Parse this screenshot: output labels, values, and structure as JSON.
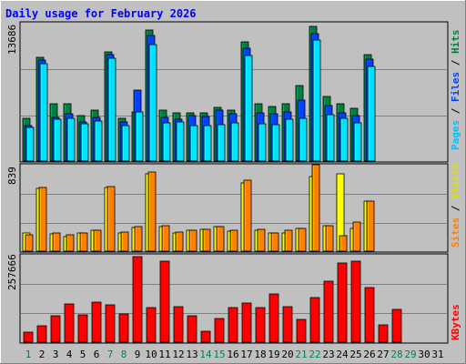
{
  "title": "Daily usage for February 2026",
  "colors": {
    "background": "#c0c0c0",
    "title": "#0000ff",
    "grid": "#808080",
    "hits": "#008040",
    "files": "#0040ff",
    "pages": "#00e0ff",
    "visits": "#ffff00",
    "sites": "#ff8000",
    "kbytes": "#ff0000",
    "day_weekday": "#000000",
    "day_weekend": "#00805c"
  },
  "chart_data": [
    {
      "type": "bar",
      "name": "hits-files-pages",
      "ymax_label": "13686",
      "ylim": [
        0,
        13686
      ],
      "grid": true,
      "legend": [
        {
          "key": "pages",
          "label": "Pages"
        },
        {
          "key": "files",
          "label": "Files"
        },
        {
          "key": "hits",
          "label": "Hits"
        }
      ],
      "series": [
        {
          "name": "Hits",
          "key": "hits",
          "values": [
            4200,
            10300,
            5700,
            5700,
            4500,
            5000,
            10800,
            4200,
            4900,
            13000,
            5000,
            4800,
            4800,
            4800,
            5300,
            5000,
            11800,
            5700,
            5400,
            5700,
            7500,
            13300,
            6400,
            5700,
            5200,
            10500
          ]
        },
        {
          "name": "Files",
          "key": "files",
          "values": [
            3500,
            10000,
            4300,
            4700,
            3900,
            4300,
            10500,
            3900,
            7000,
            12400,
            4300,
            4100,
            4500,
            4400,
            5000,
            4700,
            11200,
            4800,
            4700,
            4900,
            6000,
            12600,
            5500,
            4800,
            4500,
            10100
          ]
        },
        {
          "name": "Pages",
          "key": "pages",
          "values": [
            3300,
            9600,
            4100,
            4200,
            3700,
            4000,
            10200,
            3500,
            4900,
            11500,
            3800,
            3900,
            3500,
            3500,
            3600,
            3800,
            10400,
            3700,
            3600,
            4100,
            4200,
            12000,
            4600,
            4200,
            3800,
            9400
          ]
        }
      ]
    },
    {
      "type": "bar",
      "name": "visits-sites",
      "ymax_label": "839",
      "ylim": [
        0,
        839
      ],
      "grid": true,
      "legend": [
        {
          "key": "sites",
          "label": "Sites"
        },
        {
          "key": "visits",
          "label": "Visits"
        }
      ],
      "series": [
        {
          "name": "Visits",
          "key": "visits",
          "values": [
            175,
            605,
            170,
            145,
            175,
            200,
            620,
            175,
            230,
            755,
            240,
            175,
            200,
            215,
            240,
            190,
            660,
            200,
            175,
            180,
            220,
            720,
            245,
            755,
            225,
            490
          ]
        },
        {
          "name": "Sites",
          "key": "sites",
          "values": [
            160,
            615,
            175,
            160,
            180,
            205,
            625,
            185,
            240,
            770,
            250,
            185,
            205,
            210,
            240,
            200,
            690,
            215,
            175,
            200,
            225,
            840,
            245,
            150,
            280,
            490
          ]
        }
      ]
    },
    {
      "type": "bar",
      "name": "kbytes",
      "ymax_label": "257666",
      "ylim": [
        0,
        257666
      ],
      "grid": true,
      "legend": [
        {
          "key": "kbytes",
          "label": "KBytes"
        }
      ],
      "series": [
        {
          "name": "KBytes",
          "key": "kbytes",
          "values": [
            30000,
            48000,
            78000,
            112000,
            80000,
            118000,
            110000,
            82000,
            253000,
            103000,
            240000,
            106000,
            79000,
            32000,
            70000,
            103000,
            115000,
            103000,
            143000,
            105000,
            68000,
            132000,
            180000,
            233000,
            239000,
            162000,
            50000,
            97000
          ]
        }
      ]
    }
  ],
  "x_axis": {
    "days": [
      "1",
      "2",
      "3",
      "4",
      "5",
      "6",
      "7",
      "8",
      "9",
      "10",
      "11",
      "12",
      "13",
      "14",
      "15",
      "16",
      "17",
      "18",
      "19",
      "20",
      "21",
      "22",
      "23",
      "24",
      "25",
      "26",
      "27",
      "28",
      "29",
      "30",
      "31"
    ],
    "weekend_days": [
      "1",
      "7",
      "8",
      "14",
      "15",
      "21",
      "22",
      "28",
      "29"
    ]
  }
}
